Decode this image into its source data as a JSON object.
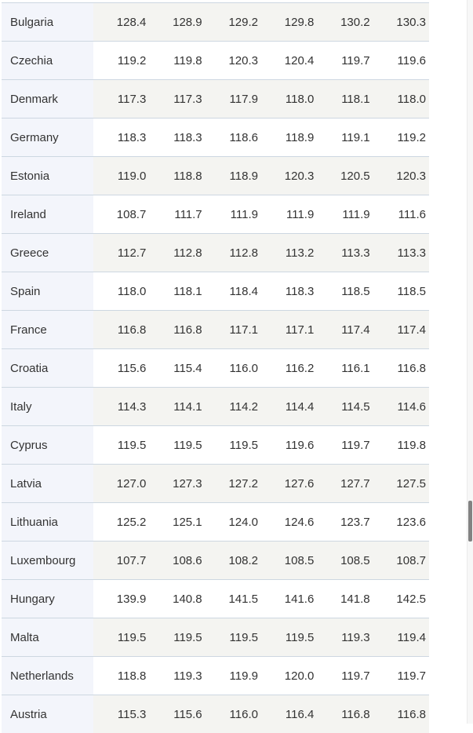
{
  "table": {
    "rows": [
      {
        "country": "Bulgaria",
        "values": [
          "128.4",
          "128.9",
          "129.2",
          "129.8",
          "130.2",
          "130.3"
        ]
      },
      {
        "country": "Czechia",
        "values": [
          "119.2",
          "119.8",
          "120.3",
          "120.4",
          "119.7",
          "119.6"
        ]
      },
      {
        "country": "Denmark",
        "values": [
          "117.3",
          "117.3",
          "117.9",
          "118.0",
          "118.1",
          "118.0"
        ]
      },
      {
        "country": "Germany",
        "values": [
          "118.3",
          "118.3",
          "118.6",
          "118.9",
          "119.1",
          "119.2"
        ]
      },
      {
        "country": "Estonia",
        "values": [
          "119.0",
          "118.8",
          "118.9",
          "120.3",
          "120.5",
          "120.3"
        ]
      },
      {
        "country": "Ireland",
        "values": [
          "108.7",
          "111.7",
          "111.9",
          "111.9",
          "111.9",
          "111.6"
        ]
      },
      {
        "country": "Greece",
        "values": [
          "112.7",
          "112.8",
          "112.8",
          "113.2",
          "113.3",
          "113.3"
        ]
      },
      {
        "country": "Spain",
        "values": [
          "118.0",
          "118.1",
          "118.4",
          "118.3",
          "118.5",
          "118.5"
        ]
      },
      {
        "country": "France",
        "values": [
          "116.8",
          "116.8",
          "117.1",
          "117.1",
          "117.4",
          "117.4"
        ]
      },
      {
        "country": "Croatia",
        "values": [
          "115.6",
          "115.4",
          "116.0",
          "116.2",
          "116.1",
          "116.8"
        ]
      },
      {
        "country": "Italy",
        "values": [
          "114.3",
          "114.1",
          "114.2",
          "114.4",
          "114.5",
          "114.6"
        ]
      },
      {
        "country": "Cyprus",
        "values": [
          "119.5",
          "119.5",
          "119.5",
          "119.6",
          "119.7",
          "119.8"
        ]
      },
      {
        "country": "Latvia",
        "values": [
          "127.0",
          "127.3",
          "127.2",
          "127.6",
          "127.7",
          "127.5"
        ]
      },
      {
        "country": "Lithuania",
        "values": [
          "125.2",
          "125.1",
          "124.0",
          "124.6",
          "123.7",
          "123.6"
        ]
      },
      {
        "country": "Luxembourg",
        "values": [
          "107.7",
          "108.6",
          "108.2",
          "108.5",
          "108.5",
          "108.7"
        ]
      },
      {
        "country": "Hungary",
        "values": [
          "139.9",
          "140.8",
          "141.5",
          "141.6",
          "141.8",
          "142.5"
        ]
      },
      {
        "country": "Malta",
        "values": [
          "119.5",
          "119.5",
          "119.5",
          "119.5",
          "119.3",
          "119.4"
        ]
      },
      {
        "country": "Netherlands",
        "values": [
          "118.8",
          "119.3",
          "119.9",
          "120.0",
          "119.7",
          "119.7"
        ]
      },
      {
        "country": "Austria",
        "values": [
          "115.3",
          "115.6",
          "116.0",
          "116.4",
          "116.8",
          "116.8"
        ]
      }
    ]
  },
  "colors": {
    "border-color": "#cdd7e1",
    "country-bg": "#f3f5fb",
    "row-alt-bg": "#f4f4f1",
    "row-bg": "#ffffff",
    "text-color": "#333333",
    "scroll-track": "#f7f7f7",
    "scroll-thumb": "#828282"
  }
}
